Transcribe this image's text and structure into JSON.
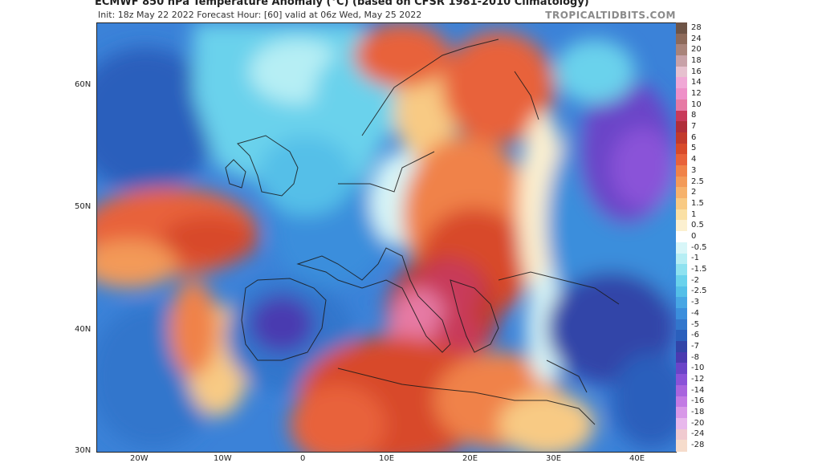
{
  "title": "ECMWF 850 hPa Temperature Anomaly (°C) (based on CFSR 1981-2010 Climatology)",
  "subtitle": "Init: 18z May 22 2022   Forecast Hour: [60]   valid at 06z Wed, May 25 2022",
  "credit": "TROPICALTIDBITS.COM",
  "lat_labels": [
    "60N",
    "50N",
    "40N",
    "30N"
  ],
  "lon_labels": [
    "20W",
    "10W",
    "0",
    "10E",
    "20E",
    "30E",
    "40E"
  ],
  "colorbar": {
    "labels": [
      "28",
      "24",
      "20",
      "18",
      "16",
      "14",
      "12",
      "10",
      "8",
      "7",
      "6",
      "5",
      "4",
      "3",
      "2.5",
      "2",
      "1.5",
      "1",
      "0.5",
      "0",
      "-0.5",
      "-1",
      "-1.5",
      "-2",
      "-2.5",
      "-3",
      "-4",
      "-5",
      "-6",
      "-7",
      "-8",
      "-10",
      "-12",
      "-14",
      "-16",
      "-18",
      "-20",
      "-24",
      "-28"
    ],
    "colors": [
      "#6e5446",
      "#8d6a5a",
      "#a9847a",
      "#c8a2a8",
      "#e6c1cf",
      "#f0a8d6",
      "#ee90c8",
      "#e67aa4",
      "#c83a5a",
      "#b02e3a",
      "#c23a2c",
      "#d84a2a",
      "#e8623a",
      "#f08248",
      "#f39a58",
      "#f6b26c",
      "#f8ca84",
      "#fae0a4",
      "#fcf0d0",
      "#ffffff",
      "#d8f6f8",
      "#b6eef4",
      "#8ee2f0",
      "#6ad2ec",
      "#54bfe8",
      "#47a6e4",
      "#3b8edc",
      "#3276cc",
      "#2a5fbc",
      "#3144a8",
      "#4a3ab0",
      "#6a44c8",
      "#8a52d8",
      "#a864de",
      "#c27ae4",
      "#d898e8",
      "#e8b8ec",
      "#f0cad0",
      "#f6dccc"
    ]
  }
}
